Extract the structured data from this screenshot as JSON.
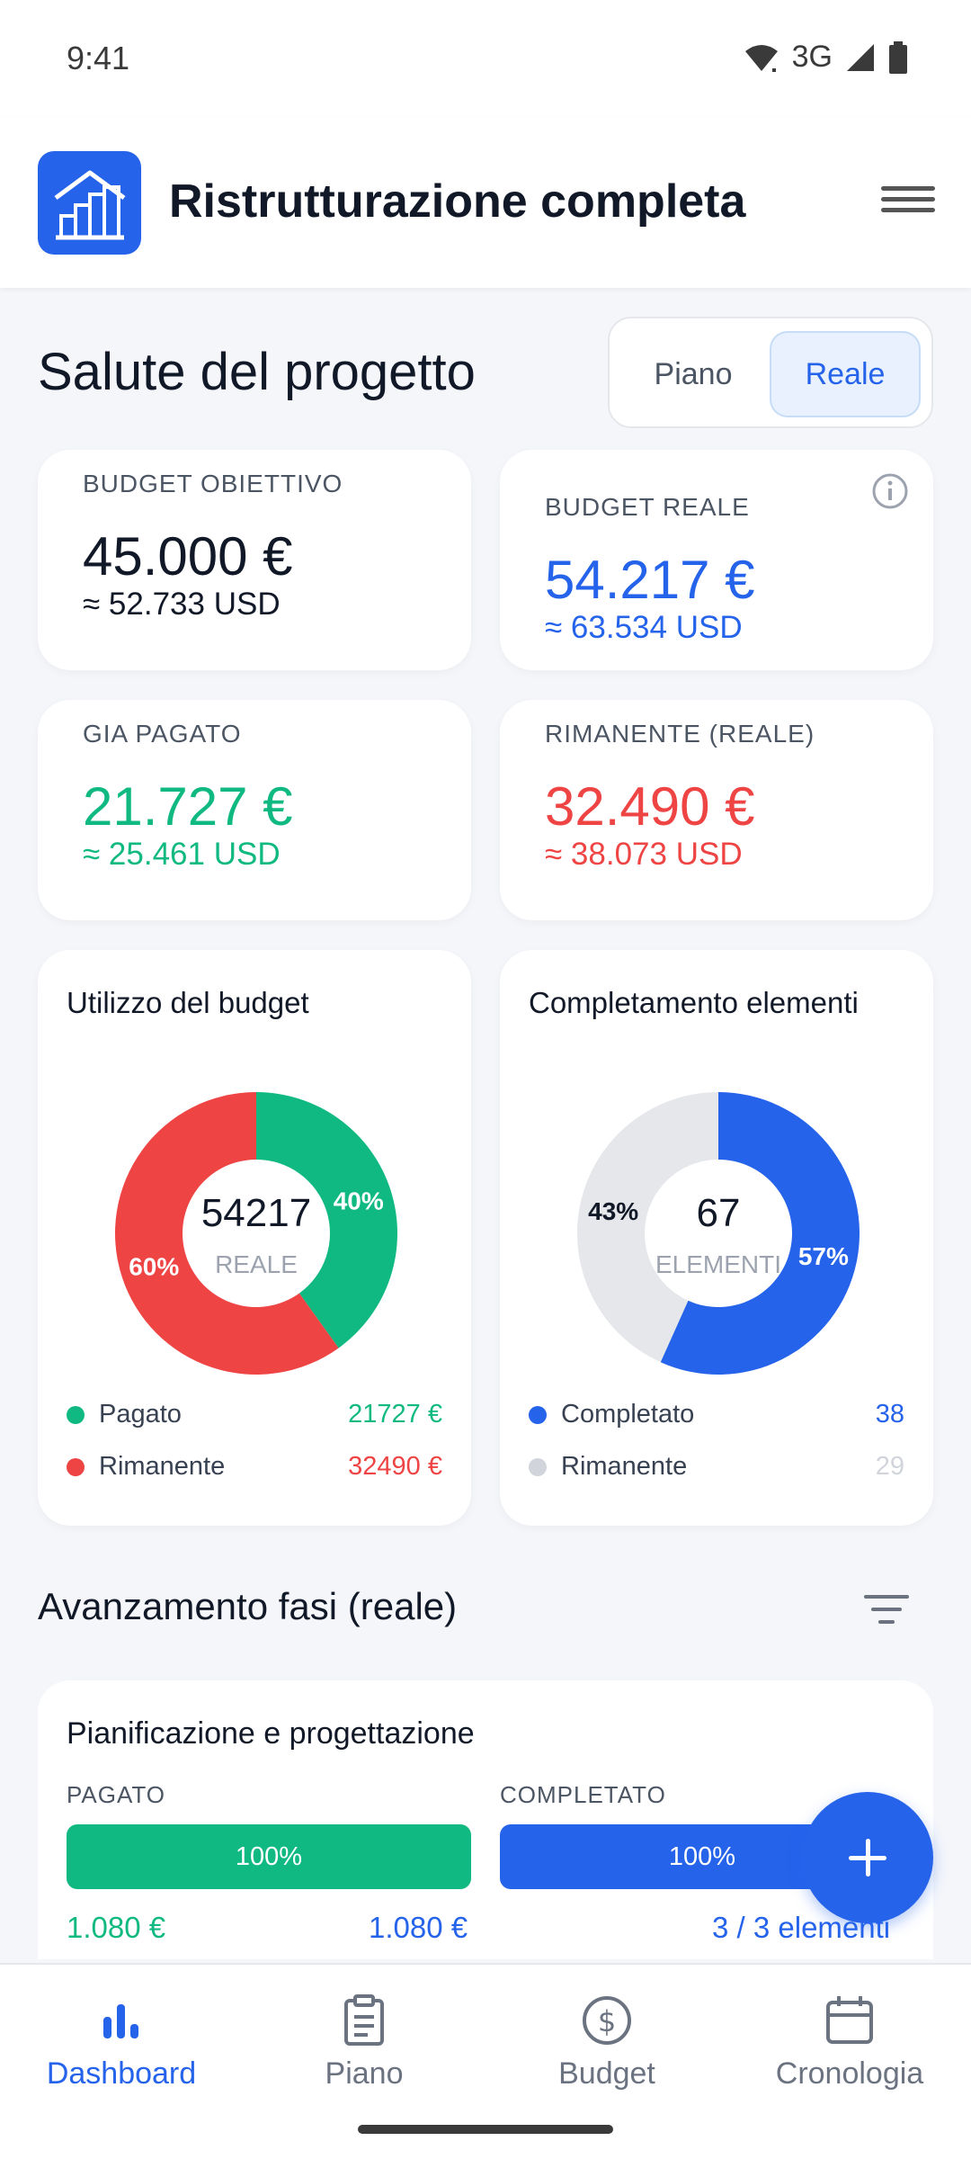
{
  "status": {
    "time": "9:41",
    "network": "3G"
  },
  "app": {
    "title": "Ristrutturazione completa"
  },
  "section": {
    "title": "Salute del progetto",
    "toggle": {
      "plan": "Piano",
      "real": "Reale",
      "selected": "Reale"
    }
  },
  "cards": {
    "target": {
      "label": "BUDGET OBIETTIVO",
      "amount": "45.000 €",
      "usd": "≈ 52.733 USD"
    },
    "actual": {
      "label": "BUDGET REALE",
      "amount": "54.217 €",
      "usd": "≈ 63.534 USD"
    },
    "paid": {
      "label": "GIA PAGATO",
      "amount": "21.727 €",
      "usd": "≈ 25.461 USD"
    },
    "remaining": {
      "label": "RIMANENTE (REALE)",
      "amount": "32.490 €",
      "usd": "≈ 38.073 USD"
    }
  },
  "charts": {
    "budget": {
      "title": "Utilizzo del budget",
      "center_value": "54217",
      "center_label": "REALE",
      "slices": [
        {
          "name": "Pagato",
          "value": 21727,
          "percent_label": "40%",
          "value_label": "21727 €",
          "color": "#10b981"
        },
        {
          "name": "Rimanente",
          "value": 32490,
          "percent_label": "60%",
          "value_label": "32490 €",
          "color": "#ef4444"
        }
      ]
    },
    "items": {
      "title": "Completamento elementi",
      "center_value": "67",
      "center_label": "ELEMENTI",
      "slices": [
        {
          "name": "Completato",
          "value": 38,
          "percent_label": "57%",
          "value_label": "38",
          "color": "#2563eb"
        },
        {
          "name": "Rimanente",
          "value": 29,
          "percent_label": "43%",
          "value_label": "29",
          "color": "#e5e7eb"
        }
      ]
    }
  },
  "phases": {
    "title": "Avanzamento fasi (reale)",
    "items": [
      {
        "name": "Pianificazione e progettazione",
        "paid_label": "PAGATO",
        "paid_percent": "100%",
        "paid_fraction": 1.0,
        "paid_amount": "1.080 €",
        "paid_total": "1.080 €",
        "completed_label": "COMPLETATO",
        "completed_percent": "100%",
        "completed_fraction": 1.0,
        "completed_count": "3 / 3 elementi"
      }
    ]
  },
  "nav": {
    "items": [
      {
        "label": "Dashboard",
        "icon": "bar-chart-icon",
        "active": true
      },
      {
        "label": "Piano",
        "icon": "clipboard-icon",
        "active": false
      },
      {
        "label": "Budget",
        "icon": "dollar-circle-icon",
        "active": false
      },
      {
        "label": "Cronologia",
        "icon": "calendar-icon",
        "active": false
      }
    ]
  },
  "colors": {
    "primary": "#2563eb",
    "green": "#10b981",
    "red": "#ef4444",
    "gray": "#e5e7eb"
  }
}
